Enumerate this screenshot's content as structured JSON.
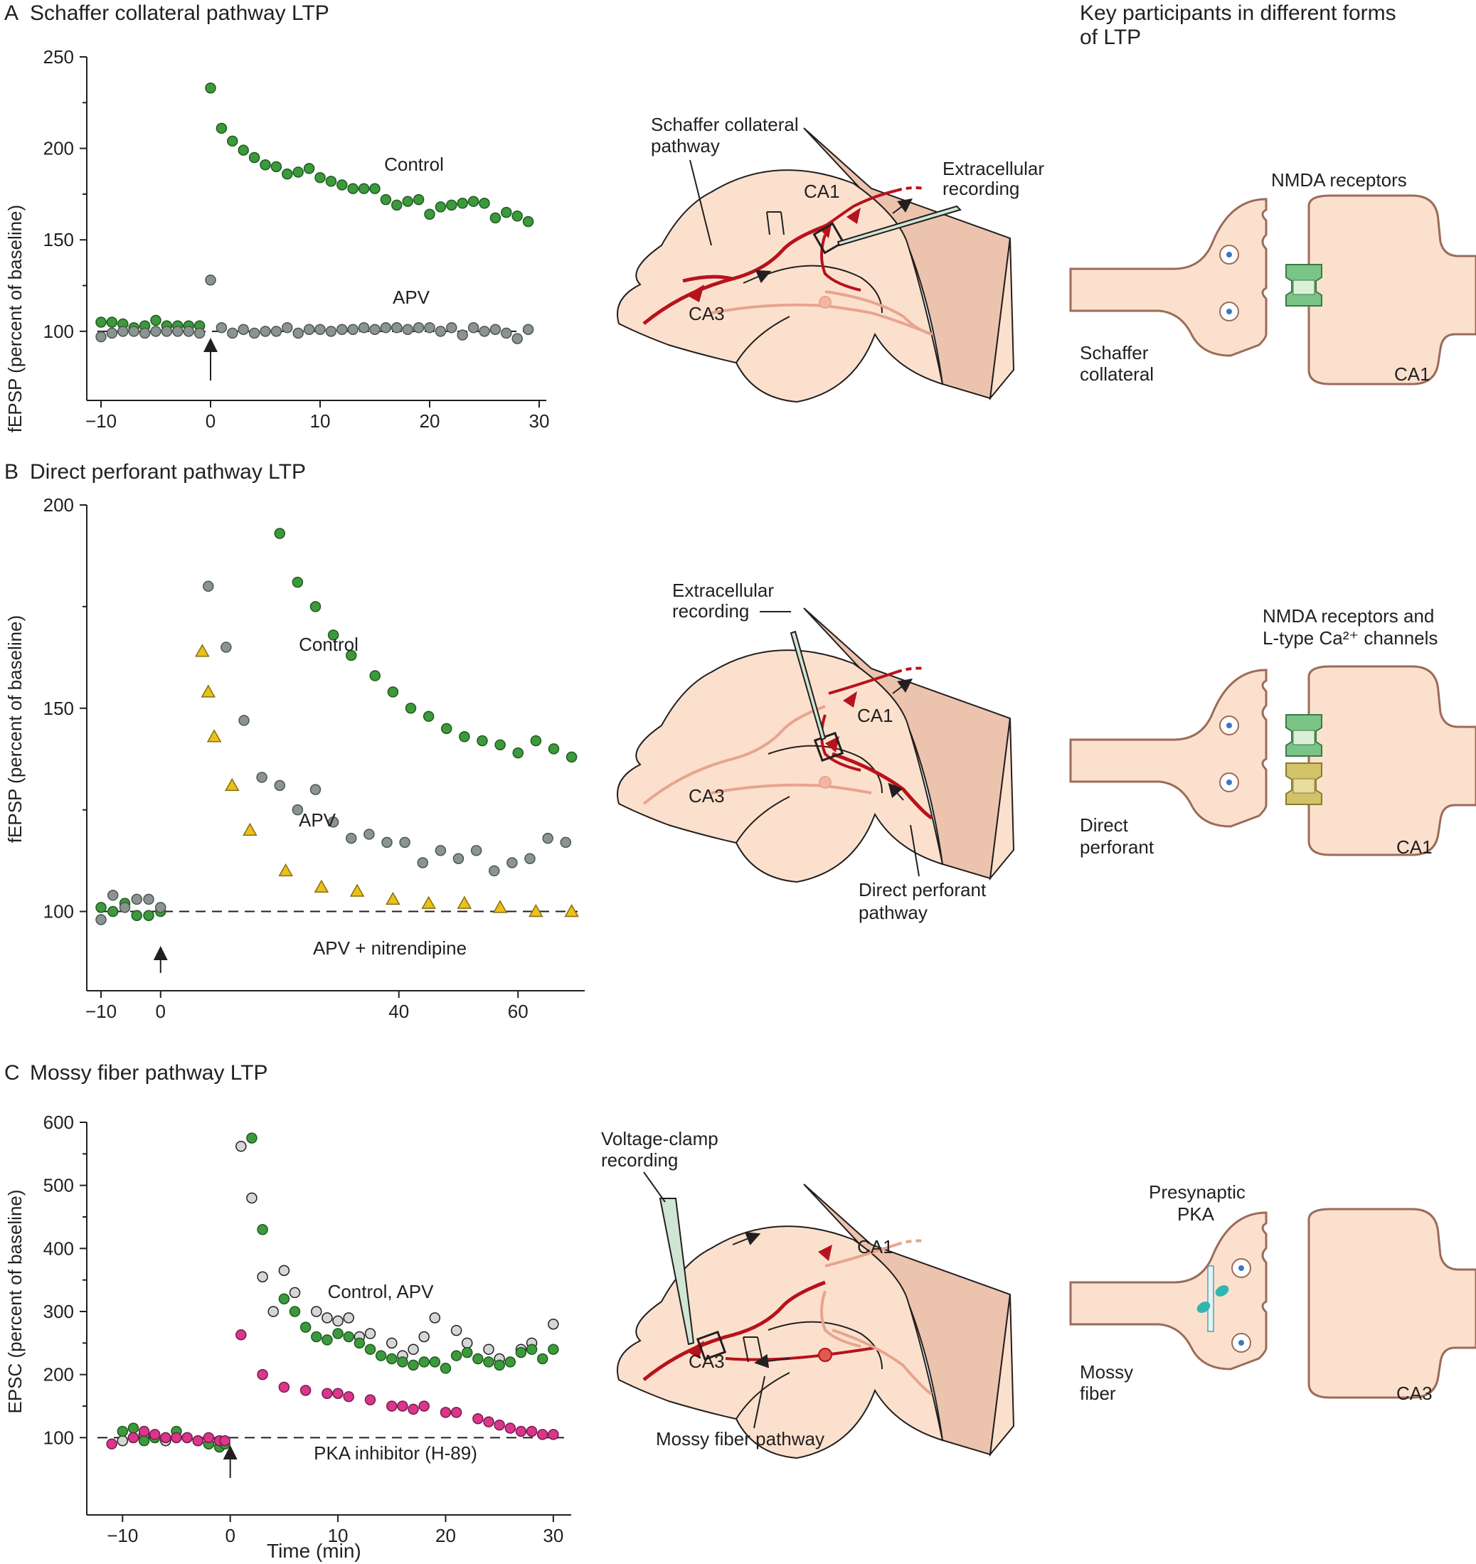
{
  "panels": [
    {
      "letter": "A",
      "title": "Schaffer collateral pathway LTP",
      "ylabel": "fEPSP (percent of baseline)",
      "diagram_labels": {
        "pathway": [
          "Schaffer collateral",
          "pathway"
        ],
        "recording": [
          "Extracellular",
          "recording"
        ],
        "ca1": "CA1",
        "ca3": "CA3"
      },
      "synapse": {
        "header": [
          "NMDA receptors"
        ],
        "pre_label": [
          "Schaffer",
          "collateral"
        ],
        "post_label": "CA1"
      }
    },
    {
      "letter": "B",
      "title": "Direct perforant pathway LTP",
      "ylabel": "fEPSP (percent of baseline)",
      "diagram_labels": {
        "pathway": [
          "Direct perforant",
          "pathway"
        ],
        "recording": [
          "Extracellular",
          "recording"
        ],
        "ca1": "CA1",
        "ca3": "CA3"
      },
      "synapse": {
        "header": [
          "NMDA receptors and",
          "L-type Ca²⁺ channels"
        ],
        "pre_label": [
          "Direct",
          "perforant"
        ],
        "post_label": "CA1"
      }
    },
    {
      "letter": "C",
      "title": "Mossy fiber pathway LTP",
      "ylabel": "EPSC (percent of baseline)",
      "diagram_labels": {
        "pathway": [
          "Mossy fiber pathway"
        ],
        "recording": [
          "Voltage-clamp",
          "recording"
        ],
        "ca1": "CA1",
        "ca3": "CA3"
      },
      "synapse": {
        "header": [
          "Presynaptic",
          "PKA"
        ],
        "pre_label": [
          "Mossy",
          "fiber"
        ],
        "post_label": "CA3"
      }
    }
  ],
  "column_header": [
    "Key participants in different forms",
    "of LTP"
  ],
  "xlabel_bottom": "Time (min)",
  "colors": {
    "control": "#3c9a3c",
    "apv": "#8a9491",
    "nitrendipine": "#e9c11a",
    "pka": "#d9368c",
    "neuron_red": "#b7121d",
    "neuron_pink": "#e8a48f",
    "tissue": "#fbe1cd",
    "tissue_dark": "#ecc4ae"
  },
  "chart_data": [
    {
      "type": "scatter",
      "title": "Schaffer collateral pathway LTP",
      "xlabel": "",
      "ylabel": "fEPSP (percent of baseline)",
      "xlim": [
        -10,
        30
      ],
      "ylim": [
        70,
        250
      ],
      "xticks": [
        -10,
        0,
        10,
        20,
        30
      ],
      "yticks": [
        100,
        150,
        200,
        250
      ],
      "baseline": 100,
      "stimulus_x": 0,
      "series": [
        {
          "name": "Control",
          "marker": "circle",
          "color": "#3c9a3c",
          "x": [
            -10,
            -9,
            -8,
            -7,
            -6,
            -5,
            -4,
            -3,
            -2,
            -1,
            0,
            1,
            2,
            3,
            4,
            5,
            6,
            7,
            8,
            9,
            10,
            11,
            12,
            13,
            14,
            15,
            16,
            17,
            18,
            19,
            20,
            21,
            22,
            23,
            24,
            25,
            26,
            27,
            28,
            29
          ],
          "y": [
            105,
            105,
            104,
            102,
            103,
            106,
            103,
            103,
            103,
            103,
            233,
            211,
            204,
            199,
            195,
            191,
            190,
            186,
            187,
            189,
            184,
            182,
            180,
            178,
            178,
            178,
            172,
            169,
            171,
            172,
            164,
            168,
            169,
            170,
            171,
            170,
            162,
            165,
            163,
            160
          ]
        },
        {
          "name": "APV",
          "marker": "circle",
          "color": "#8a9491",
          "x": [
            -10,
            -9,
            -8,
            -7,
            -6,
            -5,
            -4,
            -3,
            -2,
            -1,
            0,
            1,
            2,
            3,
            4,
            5,
            6,
            7,
            8,
            9,
            10,
            11,
            12,
            13,
            14,
            15,
            16,
            17,
            18,
            19,
            20,
            21,
            22,
            23,
            24,
            25,
            26,
            27,
            28,
            29
          ],
          "y": [
            97,
            99,
            100,
            100,
            99,
            100,
            100,
            100,
            100,
            99,
            128,
            102,
            99,
            101,
            99,
            100,
            100,
            102,
            99,
            101,
            101,
            100,
            101,
            101,
            102,
            101,
            102,
            102,
            101,
            102,
            102,
            100,
            102,
            98,
            102,
            100,
            101,
            99,
            96,
            101
          ]
        }
      ]
    },
    {
      "type": "scatter",
      "title": "Direct perforant pathway LTP",
      "xlabel": "",
      "ylabel": "fEPSP (percent of baseline)",
      "xlim": [
        -10,
        70
      ],
      "ylim": [
        84,
        200
      ],
      "xticks": [
        -10,
        0,
        40,
        60
      ],
      "yticks": [
        100,
        150,
        200
      ],
      "baseline": 100,
      "stimulus_x": 0,
      "series": [
        {
          "name": "Control",
          "marker": "circle",
          "color": "#3c9a3c",
          "x": [
            -10,
            -8,
            -6,
            -4,
            -2,
            0,
            20,
            23,
            26,
            29,
            32,
            36,
            39,
            42,
            45,
            48,
            51,
            54,
            57,
            60,
            63,
            66,
            69
          ],
          "y": [
            101,
            100,
            102,
            99,
            99,
            100,
            193,
            181,
            175,
            168,
            163,
            158,
            154,
            150,
            148,
            145,
            143,
            142,
            141,
            139,
            142,
            140,
            138
          ]
        },
        {
          "name": "APV",
          "marker": "circle",
          "color": "#8a9491",
          "x": [
            -10,
            -8,
            -6,
            -4,
            -2,
            0,
            8,
            11,
            14,
            17,
            20,
            23,
            26,
            29,
            32,
            35,
            38,
            41,
            44,
            47,
            50,
            53,
            56,
            59,
            62,
            65,
            68
          ],
          "y": [
            98,
            104,
            101,
            103,
            103,
            101,
            180,
            165,
            147,
            133,
            131,
            125,
            130,
            122,
            118,
            119,
            117,
            117,
            112,
            115,
            113,
            115,
            110,
            112,
            113,
            118,
            117
          ]
        },
        {
          "name": "APV + nitrendipine",
          "marker": "triangle",
          "color": "#e9c11a",
          "x": [
            7,
            8,
            9,
            12,
            15,
            21,
            27,
            33,
            39,
            45,
            51,
            57,
            63,
            69
          ],
          "y": [
            164,
            154,
            143,
            131,
            120,
            110,
            106,
            105,
            103,
            102,
            102,
            101,
            100,
            100
          ]
        }
      ]
    },
    {
      "type": "scatter",
      "title": "Mossy fiber pathway LTP",
      "xlabel": "Time (min)",
      "ylabel": "EPSC (percent of baseline)",
      "xlim": [
        -12,
        31
      ],
      "ylim": [
        0,
        600
      ],
      "xticks": [
        -10,
        0,
        10,
        20,
        30
      ],
      "yticks": [
        100,
        200,
        300,
        400,
        500,
        600
      ],
      "baseline": 100,
      "stimulus_x": 0,
      "series": [
        {
          "name": "Control, APV (gray)",
          "marker": "circle",
          "color": "#d6d6d6",
          "x": [
            -10,
            -9,
            -8,
            -7,
            -6,
            -5,
            -4,
            -3,
            -2,
            -1,
            -0.5,
            1,
            2,
            3,
            4,
            5,
            6,
            8,
            9,
            10,
            11,
            12,
            13,
            15,
            16,
            17,
            18,
            19,
            21,
            22,
            24,
            25,
            27,
            28,
            30
          ],
          "y": [
            95,
            100,
            105,
            100,
            95,
            100,
            100,
            95,
            90,
            95,
            90,
            562,
            480,
            355,
            300,
            365,
            330,
            300,
            290,
            285,
            290,
            260,
            265,
            250,
            230,
            240,
            260,
            290,
            270,
            250,
            240,
            225,
            240,
            250,
            280
          ]
        },
        {
          "name": "Control, APV (green)",
          "marker": "circle",
          "color": "#3c9a3c",
          "x": [
            -10,
            -9,
            -8,
            -7,
            -6,
            -5,
            -4,
            -3,
            -2,
            -1,
            -0.5,
            2,
            3,
            5,
            6,
            7,
            8,
            9,
            10,
            11,
            12,
            13,
            14,
            15,
            16,
            17,
            18,
            19,
            20,
            21,
            22,
            23,
            24,
            25,
            26,
            27,
            28,
            29,
            30
          ],
          "y": [
            110,
            115,
            95,
            100,
            100,
            110,
            100,
            95,
            90,
            85,
            90,
            575,
            430,
            320,
            300,
            275,
            260,
            255,
            265,
            260,
            250,
            240,
            230,
            225,
            220,
            215,
            220,
            220,
            210,
            230,
            235,
            225,
            220,
            215,
            220,
            235,
            240,
            225,
            240
          ]
        },
        {
          "name": "PKA inhibitor (H-89)",
          "marker": "circle",
          "color": "#d9368c",
          "x": [
            -11,
            -9,
            -8,
            -7,
            -6,
            -5,
            -4,
            -3,
            -2,
            -1,
            -0.5,
            1,
            3,
            5,
            7,
            9,
            10,
            11,
            13,
            15,
            16,
            17,
            18,
            20,
            21,
            23,
            24,
            25,
            26,
            27,
            28,
            29,
            30
          ],
          "y": [
            90,
            100,
            110,
            105,
            100,
            100,
            100,
            95,
            100,
            95,
            95,
            263,
            200,
            180,
            175,
            170,
            170,
            165,
            160,
            150,
            150,
            145,
            150,
            140,
            140,
            130,
            125,
            120,
            115,
            110,
            110,
            105,
            105
          ]
        }
      ]
    }
  ]
}
